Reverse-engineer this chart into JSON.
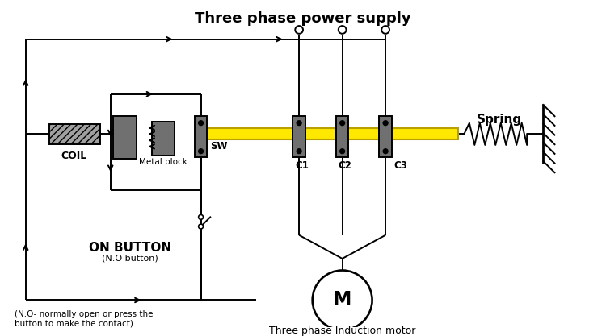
{
  "title": "Three phase power supply",
  "title_fontsize": 13,
  "motor_label": "M",
  "motor_sublabel": "Three phase Induction motor",
  "coil_label": "COIL",
  "metal_block_label": "Metal block",
  "sw_label": "SW",
  "c1_label": "C1",
  "c2_label": "C2",
  "c3_label": "C3",
  "spring_label": "Spring",
  "on_button_label": "ON BUTTON",
  "on_button_sublabel": "(N.O button)",
  "footnote": "(N.O- normally open or press the\nbutton to make the contact)",
  "bar_color": "#FFE800",
  "block_color": "#707070",
  "line_color": "#000000",
  "bg_color": "#FFFFFF"
}
